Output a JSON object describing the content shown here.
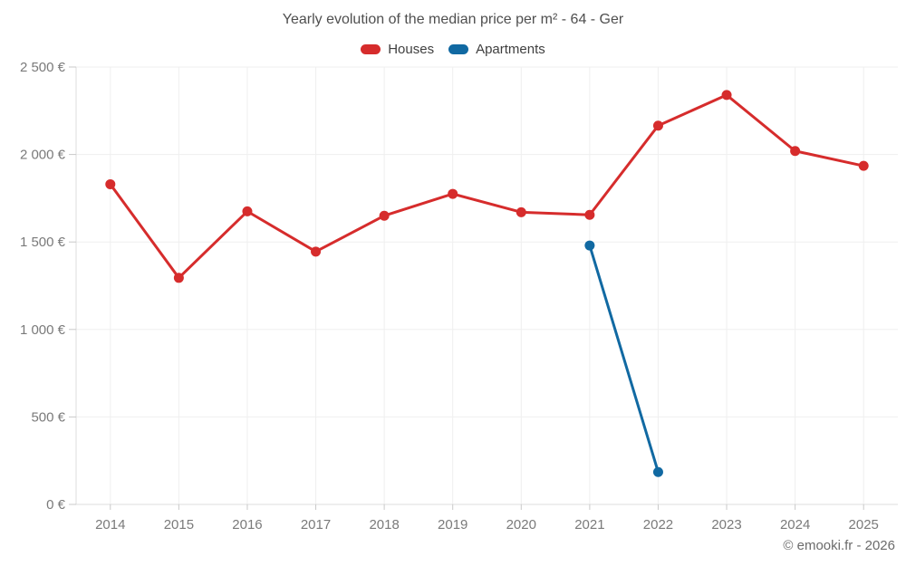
{
  "title": "Yearly evolution of the median price per m² - 64 - Ger",
  "footer": "© emooki.fr - 2026",
  "colors": {
    "houses": "#d62c2c",
    "apartments": "#1169a2",
    "gridline": "#efefef",
    "axis_line": "#dcdcdc",
    "tick_mark": "#c9c9c9",
    "axis_text": "#7a7a7a",
    "title_text": "#4f4f4f",
    "legend_text": "#3f3f3f",
    "footer_text": "#6b6b6b"
  },
  "chart_data": {
    "type": "line",
    "title": "Yearly evolution of the median price per m² - 64 - Ger",
    "xlabel": "",
    "ylabel": "",
    "ylim": [
      0,
      2500
    ],
    "grid": true,
    "legend_position": "top",
    "x": [
      "2014",
      "2015",
      "2016",
      "2017",
      "2018",
      "2019",
      "2020",
      "2021",
      "2022",
      "2023",
      "2024",
      "2025"
    ],
    "y_axis": {
      "ticks": [
        {
          "v": 0,
          "label": "0 €"
        },
        {
          "v": 500,
          "label": "500 €"
        },
        {
          "v": 1000,
          "label": "1 000 €"
        },
        {
          "v": 1500,
          "label": "1 500 €"
        },
        {
          "v": 2000,
          "label": "2 000 €"
        },
        {
          "v": 2500,
          "label": "2 500 €"
        }
      ]
    },
    "series": [
      {
        "name": "Houses",
        "color": "#d62c2c",
        "points": [
          {
            "x": "2014",
            "y": 1830
          },
          {
            "x": "2015",
            "y": 1295
          },
          {
            "x": "2016",
            "y": 1675
          },
          {
            "x": "2017",
            "y": 1445
          },
          {
            "x": "2018",
            "y": 1650
          },
          {
            "x": "2019",
            "y": 1775
          },
          {
            "x": "2020",
            "y": 1670
          },
          {
            "x": "2021",
            "y": 1655
          },
          {
            "x": "2022",
            "y": 2165
          },
          {
            "x": "2023",
            "y": 2340
          },
          {
            "x": "2024",
            "y": 2020
          },
          {
            "x": "2025",
            "y": 1935
          }
        ]
      },
      {
        "name": "Apartments",
        "color": "#1169a2",
        "points": [
          {
            "x": "2021",
            "y": 1480
          },
          {
            "x": "2022",
            "y": 185
          }
        ]
      }
    ]
  }
}
